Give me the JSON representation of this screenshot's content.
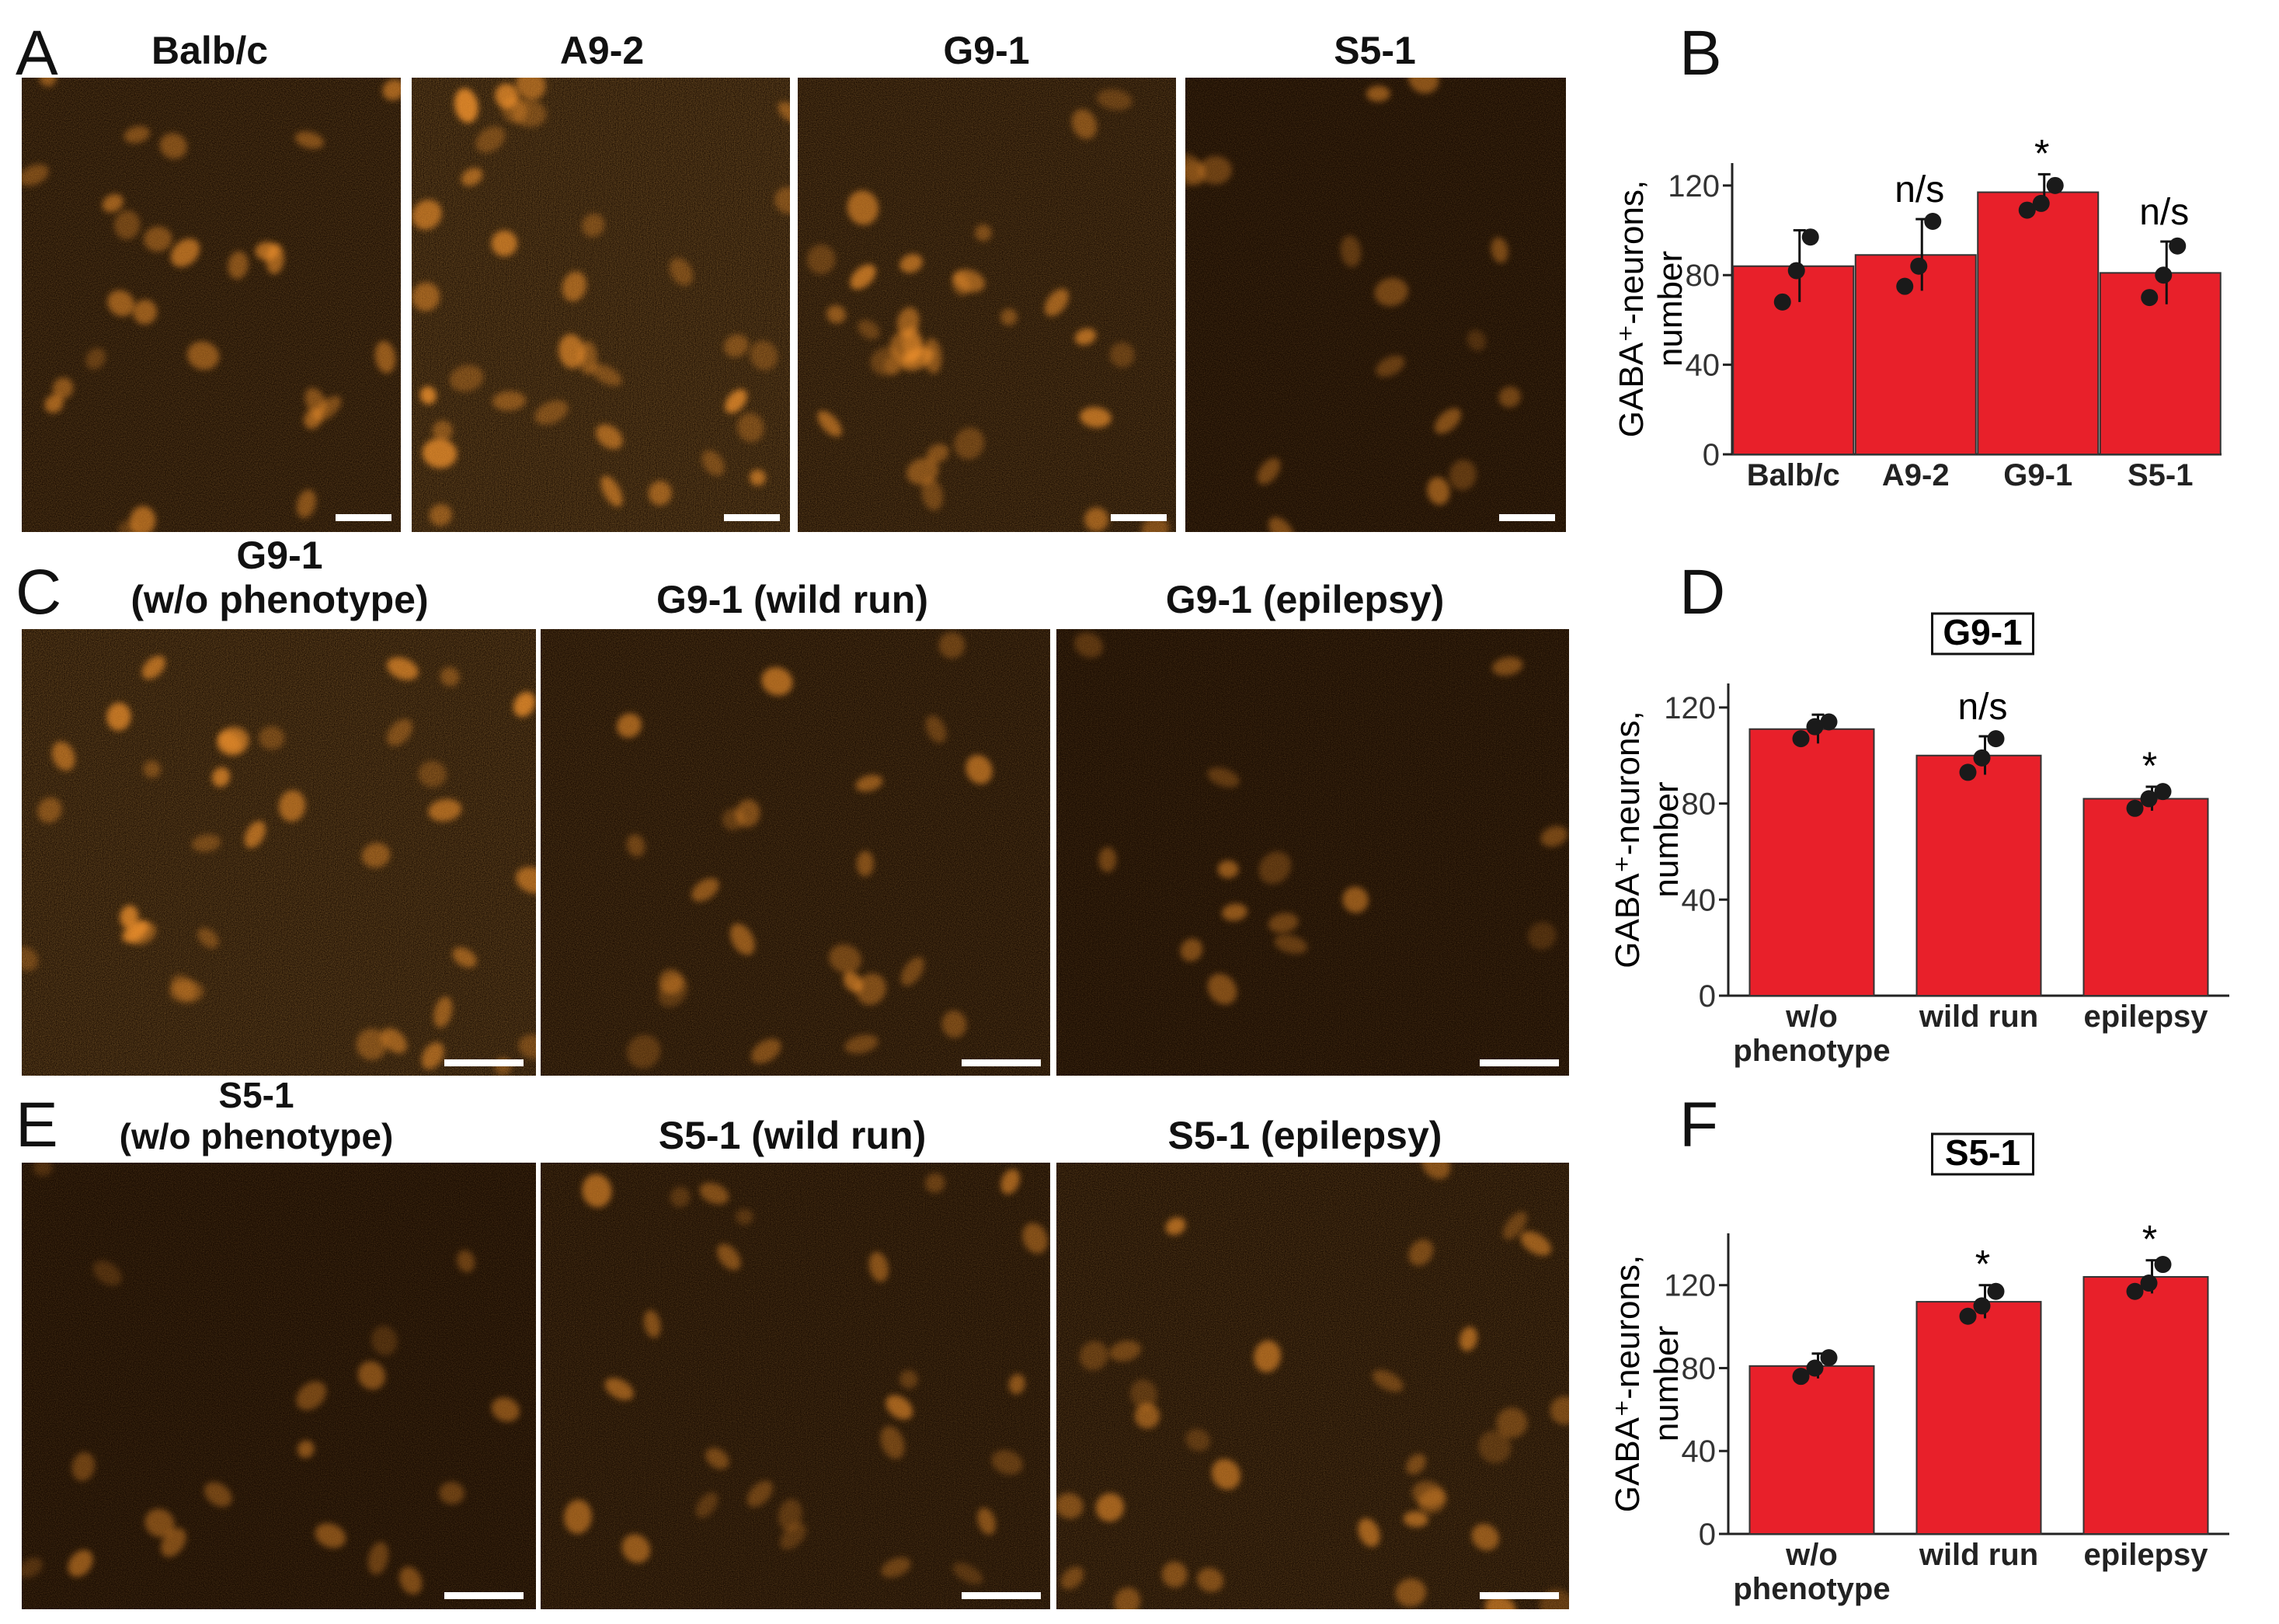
{
  "figure": {
    "panel_letters": [
      "A",
      "B",
      "C",
      "D",
      "E",
      "F"
    ],
    "row_a_titles": [
      "Balb/c",
      "A9-2",
      "G9-1",
      "S5-1"
    ],
    "row_c_titles": [
      {
        "line1": "G9-1",
        "line2": "(w/o phenotype)"
      },
      {
        "line1": "",
        "line2": "G9-1 (wild run)"
      },
      {
        "line1": "",
        "line2": "G9-1 (epilepsy)"
      }
    ],
    "row_e_titles": [
      {
        "line1": "S5-1",
        "line2": "(w/o phenotype)"
      },
      {
        "line1": "",
        "line2": "S5-1 (wild run)"
      },
      {
        "line1": "",
        "line2": "S5-1 (epilepsy)"
      }
    ],
    "bar_color": "#e8202a",
    "image_tint": "#ff9a2e"
  },
  "chart_data": [
    {
      "id": "B",
      "type": "bar",
      "title": "",
      "categories": [
        "Balb/c",
        "A9-2",
        "G9-1",
        "S5-1"
      ],
      "values": [
        84,
        89,
        117,
        81
      ],
      "errors": [
        16,
        16,
        8,
        14
      ],
      "points": [
        [
          68,
          82,
          97
        ],
        [
          75,
          84,
          104
        ],
        [
          109,
          112,
          120
        ],
        [
          70,
          80,
          93
        ]
      ],
      "significance": [
        "",
        "n/s",
        "*",
        "n/s"
      ],
      "ylabel_line1": "GABA⁺-neurons,",
      "ylabel_line2": "number",
      "yticks": [
        0,
        40,
        80,
        120
      ],
      "ylim": [
        0,
        130
      ]
    },
    {
      "id": "D",
      "type": "bar",
      "title": "G9-1",
      "categories": [
        "w/o|phenotype",
        "wild run",
        "epilepsy"
      ],
      "values": [
        111,
        100,
        82
      ],
      "errors": [
        6,
        8,
        5
      ],
      "points": [
        [
          107,
          112,
          114
        ],
        [
          93,
          99,
          107
        ],
        [
          78,
          82,
          85
        ]
      ],
      "significance": [
        "",
        "n/s",
        "*"
      ],
      "ylabel_line1": "GABA⁺-neurons,",
      "ylabel_line2": "number",
      "yticks": [
        0,
        40,
        80,
        120
      ],
      "ylim": [
        0,
        130
      ]
    },
    {
      "id": "F",
      "type": "bar",
      "title": "S5-1",
      "categories": [
        "w/o|phenotype",
        "wild run",
        "epilepsy"
      ],
      "values": [
        81,
        112,
        124
      ],
      "errors": [
        6,
        8,
        8
      ],
      "points": [
        [
          76,
          80,
          85
        ],
        [
          105,
          110,
          117
        ],
        [
          117,
          121,
          130
        ]
      ],
      "significance": [
        "",
        "*",
        "*"
      ],
      "ylabel_line1": "GABA⁺-neurons,",
      "ylabel_line2": "number",
      "yticks": [
        0,
        40,
        80,
        120
      ],
      "ylim": [
        0,
        145
      ]
    }
  ]
}
